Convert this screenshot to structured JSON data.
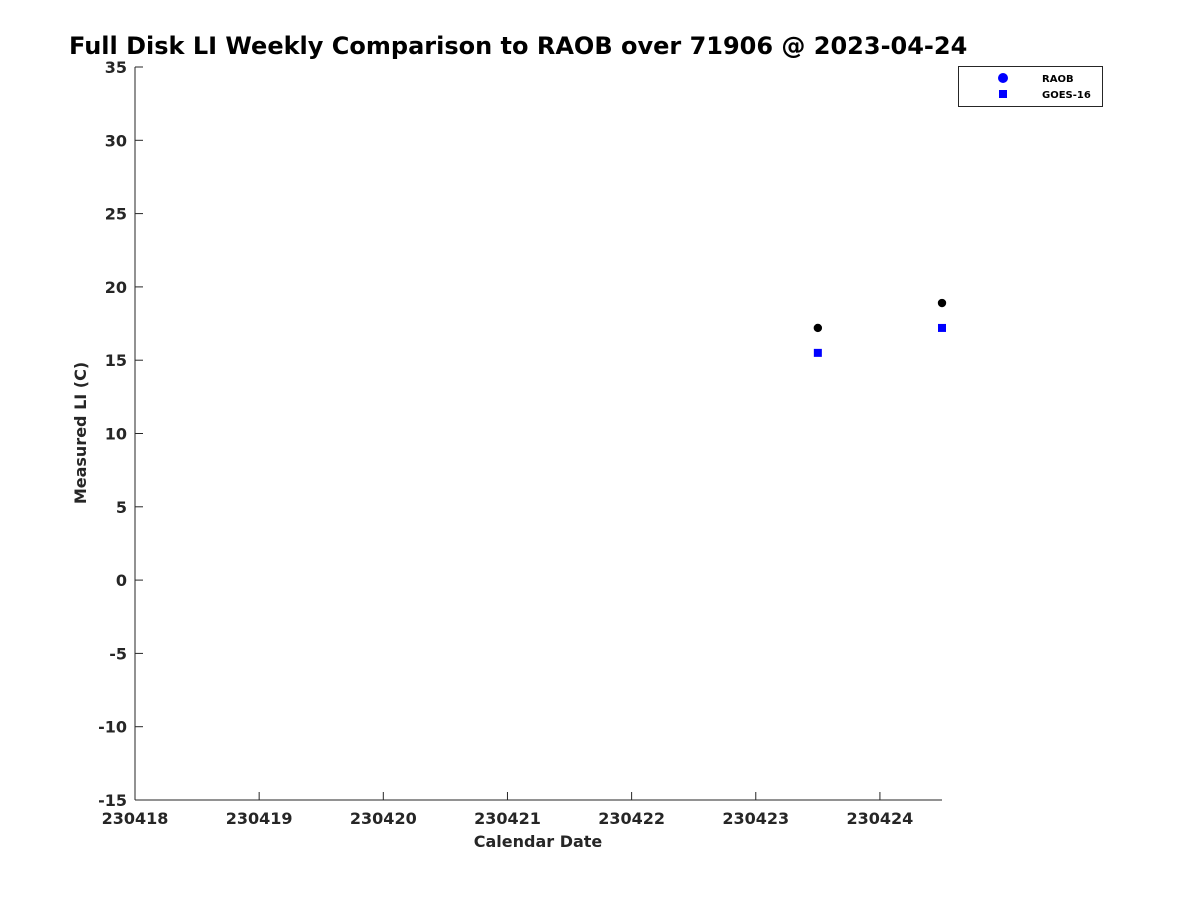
{
  "chart_data": {
    "type": "scatter",
    "title": "Full Disk LI Weekly Comparison to RAOB over 71906 @ 2023-04-24",
    "xlabel": "Calendar Date",
    "ylabel": "Measured LI (C)",
    "x_tick_labels": [
      "230418",
      "230419",
      "230420",
      "230421",
      "230422",
      "230423",
      "230424"
    ],
    "x_tick_values": [
      0,
      1,
      2,
      3,
      4,
      5,
      6
    ],
    "xlim": [
      0,
      6.5
    ],
    "y_ticks": [
      35,
      30,
      25,
      20,
      15,
      10,
      5,
      0,
      -5,
      -10,
      -15
    ],
    "ylim": [
      -15,
      35
    ],
    "grid": false,
    "legend_position": "top-right",
    "series": [
      {
        "name": "RAOB",
        "marker": "circle",
        "legend_color": "#0000ff",
        "color": "#000000",
        "points": [
          {
            "x": 5.5,
            "y": 17.2
          },
          {
            "x": 6.5,
            "y": 18.9
          }
        ]
      },
      {
        "name": "GOES-16",
        "marker": "square",
        "color": "#0000ff",
        "legend_color": "#0000ff",
        "points": [
          {
            "x": 5.5,
            "y": 15.5
          },
          {
            "x": 6.5,
            "y": 17.2
          }
        ]
      }
    ]
  }
}
